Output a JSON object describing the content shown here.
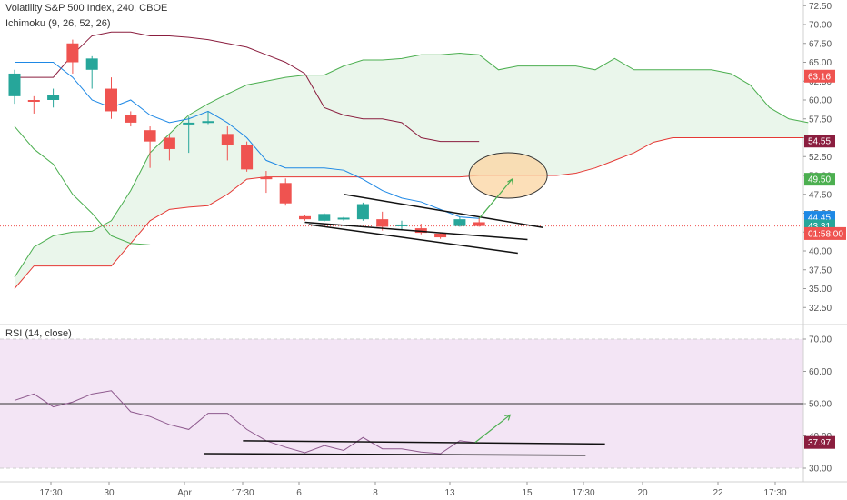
{
  "symbol_title": "Volatility S&P 500 Index, 240, CBOE",
  "ichimoku_label": "Ichimoku (9, 26, 52, 26)",
  "rsi_label": "RSI (14, close)",
  "colors": {
    "up": "#26a69a",
    "down": "#ef5350",
    "conversion": "#1e88e5",
    "base": "#8b1e3f",
    "lagging": "#4caf50",
    "span_a": "#4caf50",
    "span_b": "#e53935",
    "cloud": "#e8f5e9",
    "rsi_line": "#8e5a8e",
    "rsi_band": "#f3e5f5",
    "ellipse_fill": "#fbd7a6",
    "arrow": "#4caf50"
  },
  "chart_data": [
    {
      "type": "candlestick",
      "title": "Volatility S&P 500 Index, 240, CBOE",
      "ylim": [
        30.5,
        74
      ],
      "y_ticks": [
        "72.50",
        "70.00",
        "67.50",
        "65.00",
        "62.50",
        "60.00",
        "57.50",
        "55.00",
        "52.50",
        "50.00",
        "47.50",
        "45.00",
        "42.50",
        "40.00",
        "37.50",
        "35.00",
        "32.50"
      ],
      "x_ticks": [
        "17:30",
        "30",
        "Apr",
        "17:30",
        "6",
        "8",
        "13",
        "15",
        "17:30",
        "20",
        "22",
        "17:30"
      ],
      "candles": [
        {
          "o": 60.5,
          "h": 64,
          "l": 59.5,
          "c": 63.5
        },
        {
          "o": 60,
          "h": 60.5,
          "l": 58.2,
          "c": 59.8
        },
        {
          "o": 60,
          "h": 61.5,
          "l": 59,
          "c": 60.7
        },
        {
          "o": 67.5,
          "h": 68,
          "l": 63.5,
          "c": 65
        },
        {
          "o": 64,
          "h": 65.8,
          "l": 61.5,
          "c": 65.5
        },
        {
          "o": 61.5,
          "h": 63,
          "l": 57.5,
          "c": 58.5
        },
        {
          "o": 58,
          "h": 58.5,
          "l": 56.5,
          "c": 57
        },
        {
          "o": 56,
          "h": 56.5,
          "l": 51,
          "c": 54.5
        },
        {
          "o": 55,
          "h": 55.3,
          "l": 52,
          "c": 53.5
        },
        {
          "o": 57,
          "h": 57.8,
          "l": 53,
          "c": 57
        },
        {
          "o": 57,
          "h": 58.5,
          "l": 56.8,
          "c": 57.2
        },
        {
          "o": 55.5,
          "h": 56.5,
          "l": 52,
          "c": 54
        },
        {
          "o": 54,
          "h": 54.5,
          "l": 50.5,
          "c": 50.8
        },
        {
          "o": 49.8,
          "h": 50.6,
          "l": 47.7,
          "c": 49.5
        },
        {
          "o": 49,
          "h": 49.6,
          "l": 46,
          "c": 46.3
        },
        {
          "o": 44.6,
          "h": 44.8,
          "l": 44,
          "c": 44.2
        },
        {
          "o": 44,
          "h": 45,
          "l": 43.9,
          "c": 44.9
        },
        {
          "o": 44.2,
          "h": 44.5,
          "l": 44,
          "c": 44.4
        },
        {
          "o": 44.2,
          "h": 46.4,
          "l": 44,
          "c": 46.2
        },
        {
          "o": 44.2,
          "h": 45.2,
          "l": 42.7,
          "c": 43.2
        },
        {
          "o": 43.3,
          "h": 44,
          "l": 42.8,
          "c": 43.5
        },
        {
          "o": 43,
          "h": 43.6,
          "l": 42.2,
          "c": 42.4
        },
        {
          "o": 42.3,
          "h": 42.4,
          "l": 41.6,
          "c": 41.8
        },
        {
          "o": 43.3,
          "h": 44.5,
          "l": 43.2,
          "c": 44.2
        },
        {
          "o": 43.8,
          "h": 44.4,
          "l": 43.2,
          "c": 43.3
        }
      ],
      "conversion_line": [
        [
          0,
          65
        ],
        [
          2,
          65
        ],
        [
          3,
          63
        ],
        [
          4,
          60
        ],
        [
          5,
          59
        ],
        [
          6,
          60
        ],
        [
          7,
          58
        ],
        [
          8,
          57
        ],
        [
          9,
          57.5
        ],
        [
          10,
          58.5
        ],
        [
          11,
          57
        ],
        [
          12,
          55
        ],
        [
          13,
          52
        ],
        [
          14,
          51
        ],
        [
          15,
          51
        ],
        [
          16,
          51
        ],
        [
          17,
          50.7
        ],
        [
          18,
          49.5
        ],
        [
          19,
          48
        ],
        [
          20,
          47
        ],
        [
          21,
          46.5
        ],
        [
          22,
          45.5
        ],
        [
          23,
          44.5
        ],
        [
          24,
          44.3
        ]
      ],
      "base_line": [
        [
          0,
          63
        ],
        [
          2,
          63
        ],
        [
          3,
          66
        ],
        [
          4,
          68.5
        ],
        [
          5,
          69
        ],
        [
          6,
          69
        ],
        [
          7,
          68.5
        ],
        [
          8,
          68.5
        ],
        [
          9,
          68.3
        ],
        [
          10,
          68
        ],
        [
          11,
          67.5
        ],
        [
          12,
          67
        ],
        [
          13,
          66
        ],
        [
          14,
          65
        ],
        [
          15,
          63.5
        ],
        [
          16,
          59
        ],
        [
          17,
          58
        ],
        [
          18,
          57.5
        ],
        [
          19,
          57.5
        ],
        [
          20,
          57
        ],
        [
          21,
          55
        ],
        [
          22,
          54.5
        ],
        [
          23,
          54.5
        ],
        [
          24,
          54.5
        ]
      ],
      "lagging_line": [
        [
          0,
          56.5
        ],
        [
          1,
          53.5
        ],
        [
          2,
          51.5
        ],
        [
          3,
          47.5
        ],
        [
          4,
          45
        ],
        [
          5,
          42
        ],
        [
          6,
          41
        ],
        [
          7,
          40.8
        ]
      ],
      "span_a": [
        [
          0,
          36.5
        ],
        [
          1,
          40.5
        ],
        [
          2,
          42
        ],
        [
          3,
          42.5
        ],
        [
          4,
          42.6
        ],
        [
          5,
          44
        ],
        [
          6,
          48
        ],
        [
          7,
          53
        ],
        [
          8,
          55.5
        ],
        [
          9,
          58
        ],
        [
          10,
          59.5
        ],
        [
          11,
          60.8
        ],
        [
          12,
          62
        ],
        [
          13,
          62.5
        ],
        [
          14,
          63
        ],
        [
          15,
          63.3
        ],
        [
          16,
          63.3
        ],
        [
          17,
          64.5
        ],
        [
          18,
          65.3
        ],
        [
          19,
          65.3
        ],
        [
          20,
          65.5
        ],
        [
          21,
          66
        ],
        [
          22,
          66
        ],
        [
          23,
          66.2
        ],
        [
          24,
          66
        ],
        [
          25,
          64
        ],
        [
          26,
          64.5
        ],
        [
          27,
          64.5
        ],
        [
          28,
          64.5
        ],
        [
          29,
          64.5
        ],
        [
          30,
          64
        ],
        [
          31,
          65.5
        ],
        [
          32,
          64
        ],
        [
          33,
          64
        ],
        [
          34,
          64
        ],
        [
          35,
          64
        ],
        [
          36,
          64
        ],
        [
          37,
          63.5
        ],
        [
          38,
          62
        ],
        [
          39,
          59
        ],
        [
          40,
          57.5
        ],
        [
          41,
          57
        ]
      ],
      "span_b": [
        [
          0,
          35
        ],
        [
          1,
          38
        ],
        [
          2,
          38
        ],
        [
          3,
          38
        ],
        [
          4,
          38
        ],
        [
          5,
          38
        ],
        [
          6,
          41
        ],
        [
          7,
          44
        ],
        [
          8,
          45.5
        ],
        [
          9,
          45.8
        ],
        [
          10,
          46
        ],
        [
          11,
          47.5
        ],
        [
          12,
          49.5
        ],
        [
          13,
          49.8
        ],
        [
          14,
          49.8
        ],
        [
          15,
          49.8
        ],
        [
          16,
          49.8
        ],
        [
          17,
          49.8
        ],
        [
          18,
          49.8
        ],
        [
          19,
          49.8
        ],
        [
          20,
          49.8
        ],
        [
          21,
          49.8
        ],
        [
          22,
          49.8
        ],
        [
          23,
          49.8
        ],
        [
          24,
          50
        ],
        [
          25,
          50
        ],
        [
          26,
          50
        ],
        [
          27,
          50
        ],
        [
          28,
          50
        ],
        [
          29,
          50.3
        ],
        [
          30,
          51
        ],
        [
          31,
          52
        ],
        [
          32,
          53
        ],
        [
          33,
          54.4
        ],
        [
          34,
          55
        ],
        [
          35,
          55
        ],
        [
          36,
          55
        ],
        [
          37,
          55
        ],
        [
          38,
          55
        ],
        [
          39,
          55
        ],
        [
          40,
          55
        ],
        [
          41,
          55
        ]
      ],
      "price_labels": [
        {
          "text": "63.16",
          "value": 63.16,
          "color": "#ef5350"
        },
        {
          "text": "54.55",
          "value": 54.55,
          "color": "#8b1e3f"
        },
        {
          "text": "49.50",
          "value": 49.5,
          "color": "#4caf50"
        },
        {
          "text": "44.45",
          "value": 44.45,
          "color": "#1e88e5"
        },
        {
          "text": "43.31",
          "value": 43.31,
          "color": "#26a69a"
        },
        {
          "text": "01:58:00",
          "value": 42.3,
          "color": "#ef5350"
        }
      ]
    },
    {
      "type": "line",
      "title": "RSI (14, close)",
      "ylim": [
        27,
        73
      ],
      "y_ticks": [
        "70.00",
        "60.00",
        "50.00",
        "40.00",
        "30.00"
      ],
      "band": [
        30,
        70
      ],
      "midline": 50,
      "values": [
        [
          0,
          51
        ],
        [
          1,
          53
        ],
        [
          2,
          49
        ],
        [
          3,
          50.5
        ],
        [
          4,
          53
        ],
        [
          5,
          54
        ],
        [
          6,
          47.5
        ],
        [
          7,
          46
        ],
        [
          8,
          43.5
        ],
        [
          9,
          42
        ],
        [
          10,
          47
        ],
        [
          11,
          47
        ],
        [
          12,
          42
        ],
        [
          13,
          38.5
        ],
        [
          14,
          36.5
        ],
        [
          15,
          34.8
        ],
        [
          16,
          37
        ],
        [
          17,
          35.5
        ],
        [
          18,
          39.5
        ],
        [
          19,
          36
        ],
        [
          20,
          36
        ],
        [
          21,
          35
        ],
        [
          22,
          34.5
        ],
        [
          23,
          38.5
        ],
        [
          24,
          37.8
        ]
      ],
      "current_label": {
        "text": "37.97",
        "value": 37.97,
        "color": "#8b1e3f"
      }
    }
  ]
}
